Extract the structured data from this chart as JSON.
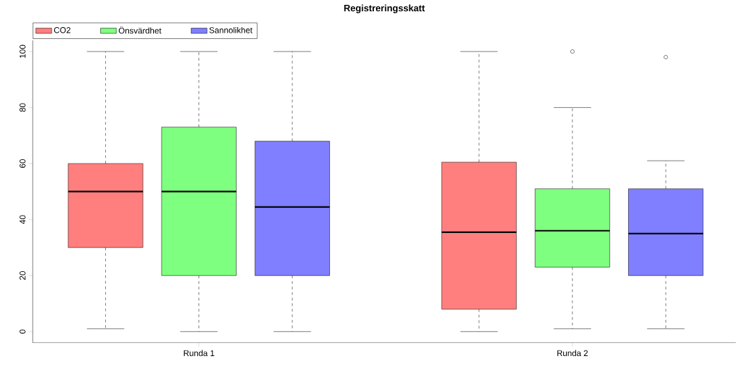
{
  "chart_data": {
    "type": "box",
    "title": "Registreringsskatt",
    "categories": [
      "Runda 1",
      "Runda 2"
    ],
    "series": [
      {
        "name": "CO2",
        "color": "#ff7f7f",
        "boxes": [
          {
            "low": 1,
            "q1": 30,
            "median": 50,
            "q3": 60,
            "high": 100
          },
          {
            "low": 0,
            "q1": 8,
            "median": 35.5,
            "q3": 60.5,
            "high": 100
          }
        ]
      },
      {
        "name": "Önsvärdhet",
        "color": "#7fff7f",
        "boxes": [
          {
            "low": 0,
            "q1": 20,
            "median": 50,
            "q3": 73,
            "high": 100
          },
          {
            "low": 1,
            "q1": 23,
            "median": 36,
            "q3": 51,
            "high": 80,
            "outliers": [
              100
            ]
          }
        ]
      },
      {
        "name": "Sannolikhet",
        "color": "#7f7fff",
        "boxes": [
          {
            "low": 0,
            "q1": 20,
            "median": 44.5,
            "q3": 68,
            "high": 100
          },
          {
            "low": 1,
            "q1": 20,
            "median": 35,
            "q3": 51,
            "high": 61,
            "outliers": [
              98
            ]
          }
        ]
      }
    ],
    "ylim": [
      -4,
      104
    ],
    "yticks": [
      0,
      20,
      40,
      60,
      80,
      100
    ],
    "legend": "top left",
    "marker": "circle"
  }
}
